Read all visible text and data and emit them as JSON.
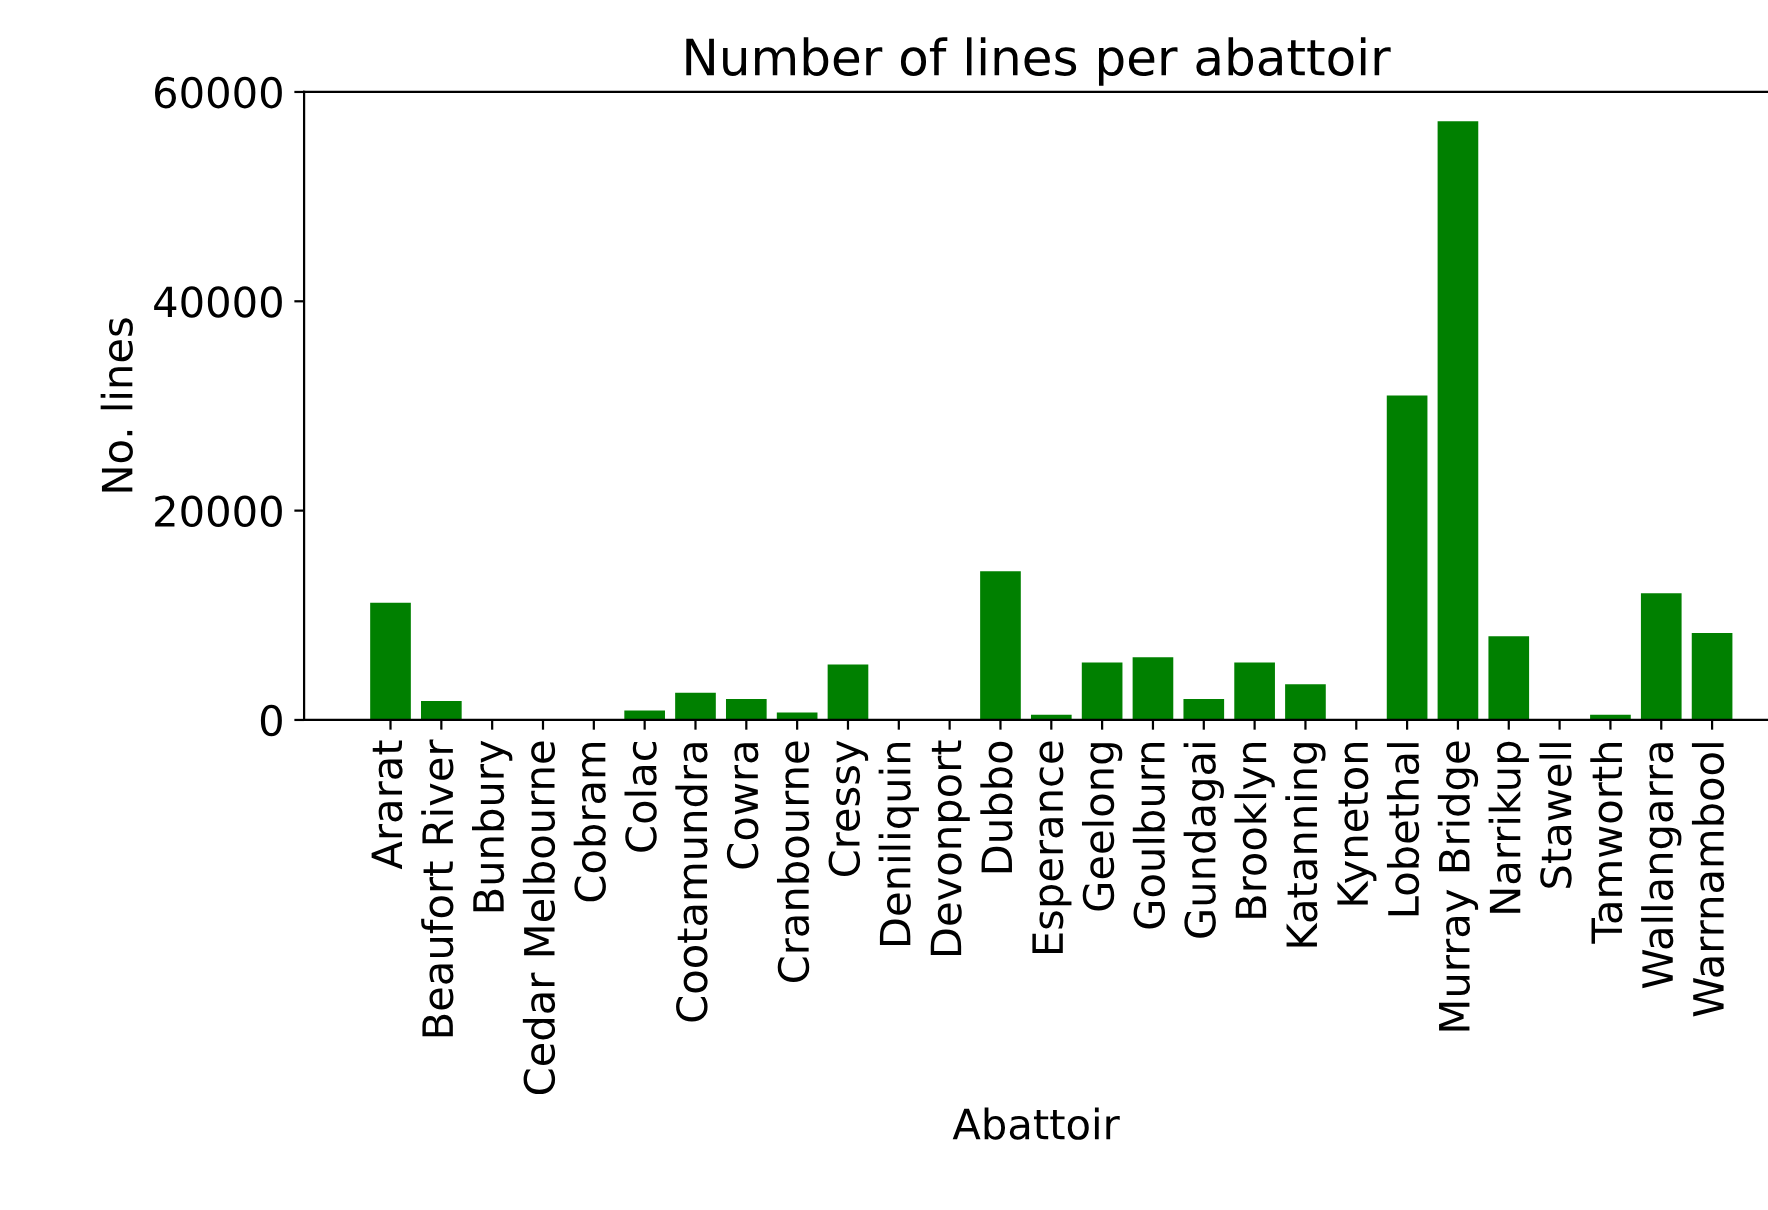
{
  "chart_data": {
    "type": "bar",
    "title": "Number of lines per abattoir",
    "xlabel": "Abattoir",
    "ylabel": "No. lines",
    "categories": [
      "Ararat",
      "Beaufort River",
      "Bunbury",
      "Cedar Melbourne",
      "Cobram",
      "Colac",
      "Cootamundra",
      "Cowra",
      "Cranbourne",
      "Cressy",
      "Deniliquin",
      "Devonport",
      "Dubbo",
      "Esperance",
      "Geelong",
      "Goulburn",
      "Gundagai",
      "Brooklyn",
      "Katanning",
      "Kyneton",
      "Lobethal",
      "Murray Bridge",
      "Narrikup",
      "Stawell",
      "Tamworth",
      "Wallangarra",
      "Warrnambool"
    ],
    "values": [
      11200,
      1800,
      0,
      0,
      0,
      900,
      2600,
      2000,
      700,
      5300,
      0,
      0,
      14200,
      500,
      5500,
      6000,
      2000,
      5500,
      3400,
      0,
      31000,
      57200,
      8000,
      0,
      500,
      12100,
      8300
    ],
    "color": "#008000",
    "ylim": [
      0,
      60000
    ],
    "yticks": [
      0,
      20000,
      40000,
      60000
    ],
    "grid": false
  }
}
